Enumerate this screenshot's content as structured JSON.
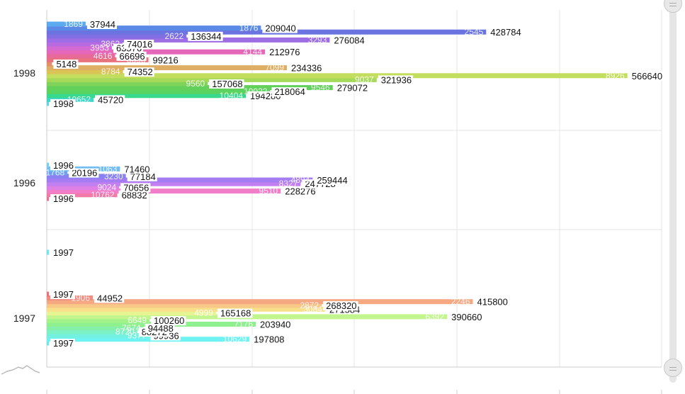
{
  "chart_data": {
    "type": "bar",
    "orientation": "horizontal",
    "xlim": [
      0,
      600000
    ],
    "grid": true,
    "categories": [
      "1998",
      "1996",
      "1997"
    ],
    "groups": [
      {
        "category": "1998",
        "bars": [
          {
            "value": 1998,
            "end_label": "1998",
            "inner_label": "",
            "color": "#5ed4ef"
          },
          {
            "value": 45720,
            "end_label": "45720",
            "inner_label": "10652",
            "color": "#3fd8c8"
          },
          {
            "value": 194280,
            "end_label": "194280",
            "inner_label": "10404",
            "color": "#37d98f"
          },
          {
            "value": 218064,
            "end_label": "218064",
            "inner_label": "10022",
            "color": "#5ad35f"
          },
          {
            "value": 279072,
            "end_label": "279072",
            "inner_label": "9546",
            "color": "#62d05a"
          },
          {
            "value": 157068,
            "end_label": "157068",
            "inner_label": "9560",
            "color": "#7fd35a"
          },
          {
            "value": 321936,
            "end_label": "321936",
            "inner_label": "9037",
            "color": "#a6d85a"
          },
          {
            "value": 566640,
            "end_label": "566640",
            "inner_label": "8926",
            "color": "#c3de5e"
          },
          {
            "value": 74352,
            "end_label": "74352",
            "inner_label": "8784",
            "color": "#d9c455"
          },
          {
            "value": 234336,
            "end_label": "234336",
            "inner_label": "7099",
            "color": "#ddae63"
          },
          {
            "value": 5148,
            "end_label": "5148",
            "inner_label": "",
            "color": "#e38f6b"
          },
          {
            "value": 99216,
            "end_label": "99216",
            "inner_label": "5698",
            "color": "#e8727e"
          },
          {
            "value": 66696,
            "end_label": "66696",
            "inner_label": "4616",
            "color": "#e86a98"
          },
          {
            "value": 212976,
            "end_label": "212976",
            "inner_label": "4144",
            "color": "#e567b8"
          },
          {
            "value": 63576,
            "end_label": "63576",
            "inner_label": "3953",
            "color": "#d46ad3"
          },
          {
            "value": 74016,
            "end_label": "74016",
            "inner_label": "3862",
            "color": "#b86ae0"
          },
          {
            "value": 276084,
            "end_label": "276084",
            "inner_label": "3293",
            "color": "#9c6de4"
          },
          {
            "value": 136344,
            "end_label": "136344",
            "inner_label": "2622",
            "color": "#826ee3"
          },
          {
            "value": 428784,
            "end_label": "428784",
            "inner_label": "2545",
            "color": "#6a73e0"
          },
          {
            "value": 209040,
            "end_label": "209040",
            "inner_label": "1876",
            "color": "#5b8ae6"
          },
          {
            "value": 37944,
            "end_label": "37944",
            "inner_label": "1869",
            "color": "#5cabee"
          }
        ]
      },
      {
        "category": "1996",
        "bars": [
          {
            "value": 1996,
            "end_label": "1996",
            "inner_label": "",
            "color": "#f06f8d"
          },
          {
            "value": 68832,
            "end_label": "68832",
            "inner_label": "10762",
            "color": "#f27aa8"
          },
          {
            "value": 228276,
            "end_label": "228276",
            "inner_label": "9510",
            "color": "#f07ec9"
          },
          {
            "value": 70656,
            "end_label": "70656",
            "inner_label": "9024",
            "color": "#df80e6"
          },
          {
            "value": 247728,
            "end_label": "247728",
            "inner_label": "8327",
            "color": "#c27ff0"
          },
          {
            "value": 259444,
            "end_label": "259444",
            "inner_label": "4894",
            "color": "#a67cf2"
          },
          {
            "value": 77184,
            "end_label": "77184",
            "inner_label": "3230",
            "color": "#8a82f2"
          },
          {
            "value": 20196,
            "end_label": "20196",
            "inner_label": "1768",
            "color": "#6fa0f2"
          },
          {
            "value": 71460,
            "end_label": "71460",
            "inner_label": "1063",
            "color": "#70bdf3"
          },
          {
            "value": 1996,
            "end_label": "1996",
            "inner_label": "",
            "color": "#75d2f2"
          }
        ]
      },
      {
        "category": "1997",
        "bars": [
          {
            "value": 1997,
            "end_label": "1997",
            "inner_label": "",
            "color": "#68e8f0"
          },
          {
            "value": 197808,
            "end_label": "197808",
            "inner_label": "10629",
            "color": "#6ef2f2"
          },
          {
            "value": 99936,
            "end_label": "99936",
            "inner_label": "9377",
            "color": "#74f0e0"
          },
          {
            "value": 88272,
            "end_label": "88272",
            "inner_label": "8720",
            "color": "#7cf0c6"
          },
          {
            "value": 94488,
            "end_label": "94488",
            "inner_label": "7674",
            "color": "#84f0aa"
          },
          {
            "value": 203940,
            "end_label": "203940",
            "inner_label": "7176",
            "color": "#8ef08e"
          },
          {
            "value": 100260,
            "end_label": "100260",
            "inner_label": "6649",
            "color": "#a2f28a"
          },
          {
            "value": 390660,
            "end_label": "390660",
            "inner_label": "6392",
            "color": "#c2f58e"
          },
          {
            "value": 165168,
            "end_label": "165168",
            "inner_label": "4999",
            "color": "#e6f592"
          },
          {
            "value": 271584,
            "end_label": "271584",
            "inner_label": "3084",
            "color": "#f8e08a"
          },
          {
            "value": 268320,
            "end_label": "268320",
            "inner_label": "2872",
            "color": "#f8c888"
          },
          {
            "value": 415800,
            "end_label": "415800",
            "inner_label": "2246",
            "color": "#f5a882"
          },
          {
            "value": 44952,
            "end_label": "44952",
            "inner_label": "1906",
            "color": "#f28c80"
          },
          {
            "value": 1997,
            "end_label": "1997",
            "inner_label": "",
            "color": "#f07078"
          },
          {
            "value": 1997,
            "end_label": "1997",
            "inner_label": "",
            "color": "#68e8f0",
            "isolated": true
          }
        ]
      }
    ]
  },
  "ui": {
    "scrollbar": {
      "track_color": "#e6e6e6",
      "handle_color": "#e8e8e8"
    }
  }
}
